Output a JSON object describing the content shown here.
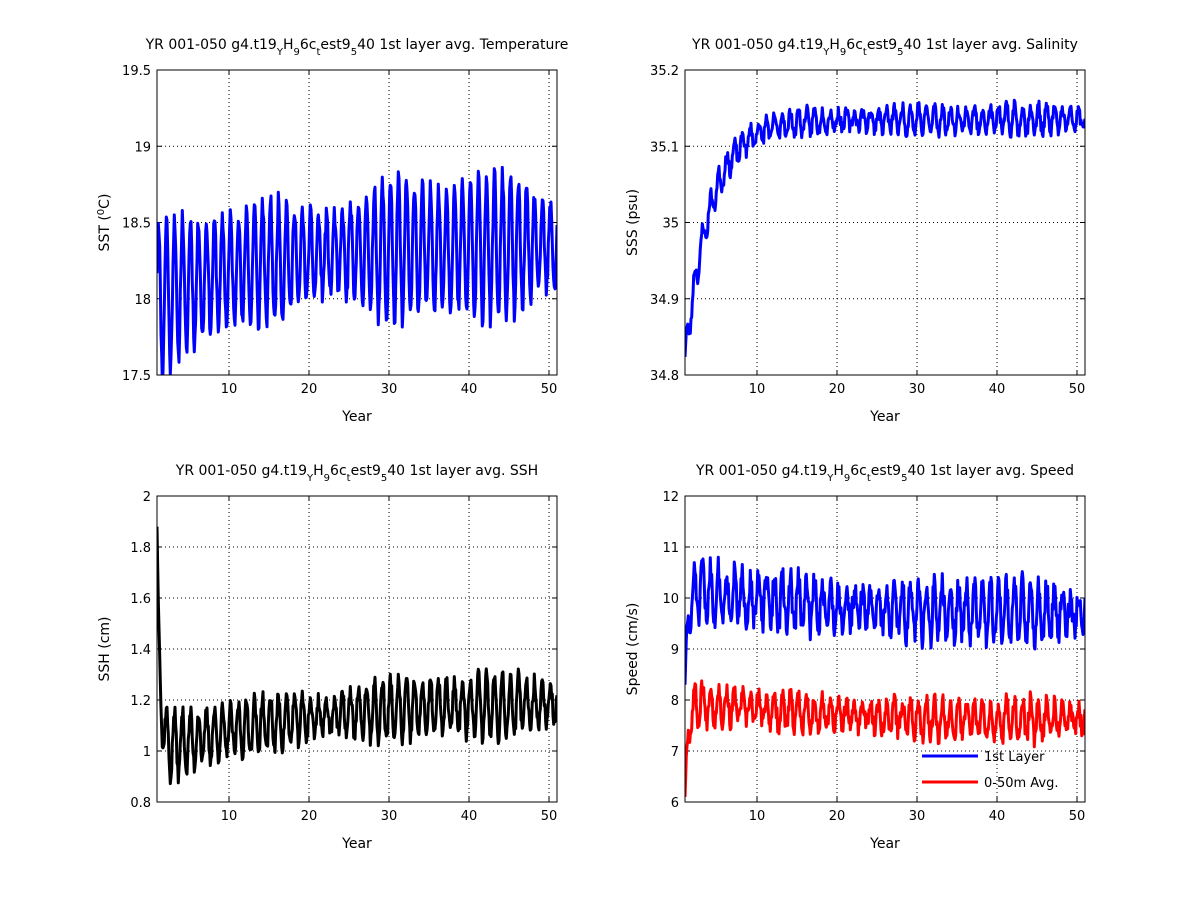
{
  "chart_data": [
    {
      "type": "line",
      "title": {
        "parts": [
          {
            "text": "YR 001-050 g4.t19"
          },
          {
            "text": "Y",
            "sub": true
          },
          {
            "text": "H"
          },
          {
            "text": "9",
            "sub": true
          },
          {
            "text": "6c"
          },
          {
            "text": "t",
            "sub": true
          },
          {
            "text": "est9"
          },
          {
            "text": "5",
            "sub": true
          },
          {
            "text": "40 1st layer avg. Temperature"
          }
        ]
      },
      "xlabel": "Year",
      "ylabel": {
        "parts": [
          {
            "text": "SST ("
          },
          {
            "text": "0",
            "sup": true
          },
          {
            "text": "C)"
          }
        ]
      },
      "xlim": [
        1,
        51
      ],
      "ylim": [
        17.5,
        19.5
      ],
      "xticks": [
        "10",
        "20",
        "30",
        "40",
        "50"
      ],
      "yticks": [
        "17.5",
        "18",
        "18.5",
        "19",
        "19.5"
      ],
      "grid": true,
      "series": [
        {
          "color": "#0000ff",
          "x_start": 1,
          "x_end": 51,
          "per_year": 12,
          "mean_start": 18.0,
          "mean_end": 18.35,
          "mean_tau": 12,
          "amp": 0.38,
          "noise": 0.06,
          "seed": 11
        }
      ]
    },
    {
      "type": "line",
      "title": {
        "parts": [
          {
            "text": "YR 001-050 g4.t19"
          },
          {
            "text": "Y",
            "sub": true
          },
          {
            "text": "H"
          },
          {
            "text": "9",
            "sub": true
          },
          {
            "text": "6c"
          },
          {
            "text": "t",
            "sub": true
          },
          {
            "text": "est9"
          },
          {
            "text": "5",
            "sub": true
          },
          {
            "text": "40 1st layer avg. Salinity"
          }
        ]
      },
      "xlabel": "Year",
      "ylabel": {
        "parts": [
          {
            "text": "SSS (psu)"
          }
        ]
      },
      "xlim": [
        1,
        51
      ],
      "ylim": [
        34.8,
        35.2
      ],
      "xticks": [
        "10",
        "20",
        "30",
        "40",
        "50"
      ],
      "yticks": [
        "34.8",
        "34.9",
        "35",
        "35.1",
        "35.2"
      ],
      "grid": true,
      "series": [
        {
          "color": "#0000ff",
          "x_start": 1,
          "x_end": 51,
          "per_year": 12,
          "mean_start": 34.82,
          "mean_end": 35.135,
          "mean_tau": 3.2,
          "amp": 0.015,
          "noise": 0.008,
          "seed": 23
        }
      ]
    },
    {
      "type": "line",
      "title": {
        "parts": [
          {
            "text": "YR 001-050 g4.t19"
          },
          {
            "text": "Y",
            "sub": true
          },
          {
            "text": "H"
          },
          {
            "text": "9",
            "sub": true
          },
          {
            "text": "6c"
          },
          {
            "text": "t",
            "sub": true
          },
          {
            "text": "est9"
          },
          {
            "text": "5",
            "sub": true
          },
          {
            "text": "40 1st layer avg. SSH"
          }
        ]
      },
      "xlabel": "Year",
      "ylabel": {
        "parts": [
          {
            "text": "SSH (cm)"
          }
        ]
      },
      "xlim": [
        1,
        51
      ],
      "ylim": [
        0.8,
        2.0
      ],
      "xticks": [
        "10",
        "20",
        "30",
        "40",
        "50"
      ],
      "yticks": [
        "0.8",
        "1",
        "1.2",
        "1.4",
        "1.6",
        "1.8",
        "2"
      ],
      "grid": true,
      "series": [
        {
          "color": "#000000",
          "x_start": 1,
          "x_end": 51,
          "per_year": 12,
          "mean_start": 1.0,
          "mean_end": 1.2,
          "mean_tau": 18,
          "amp": 0.1,
          "noise": 0.03,
          "seed": 37,
          "spike": {
            "start_value": 1.88,
            "decay_years": 0.35
          }
        }
      ]
    },
    {
      "type": "line",
      "title": {
        "parts": [
          {
            "text": "YR 001-050 g4.t19"
          },
          {
            "text": "Y",
            "sub": true
          },
          {
            "text": "H"
          },
          {
            "text": "9",
            "sub": true
          },
          {
            "text": "6c"
          },
          {
            "text": "t",
            "sub": true
          },
          {
            "text": "est9"
          },
          {
            "text": "5",
            "sub": true
          },
          {
            "text": "40 1st layer avg. Speed"
          }
        ]
      },
      "xlabel": "Year",
      "ylabel": {
        "parts": [
          {
            "text": "Speed (cm/s)"
          }
        ]
      },
      "xlim": [
        1,
        51
      ],
      "ylim": [
        6,
        12
      ],
      "xticks": [
        "10",
        "20",
        "30",
        "40",
        "50"
      ],
      "yticks": [
        "6",
        "7",
        "8",
        "9",
        "10",
        "11",
        "12"
      ],
      "grid": true,
      "legend_position": "lower-right",
      "series": [
        {
          "name": "1st Layer",
          "color": "#0000ff",
          "x_start": 1,
          "x_end": 51,
          "per_year": 12,
          "mean_start": 10.2,
          "mean_end": 9.7,
          "mean_tau": 15,
          "amp": 0.45,
          "noise": 0.25,
          "seed": 51,
          "spike": {
            "start_value": 8.3,
            "decay_years": 0.4
          }
        },
        {
          "name": "0-50m Avg.",
          "color": "#ff0000",
          "x_start": 1,
          "x_end": 51,
          "per_year": 12,
          "mean_start": 8.0,
          "mean_end": 7.6,
          "mean_tau": 15,
          "amp": 0.3,
          "noise": 0.18,
          "seed": 67,
          "spike": {
            "start_value": 6.1,
            "decay_years": 0.4
          }
        }
      ]
    }
  ]
}
